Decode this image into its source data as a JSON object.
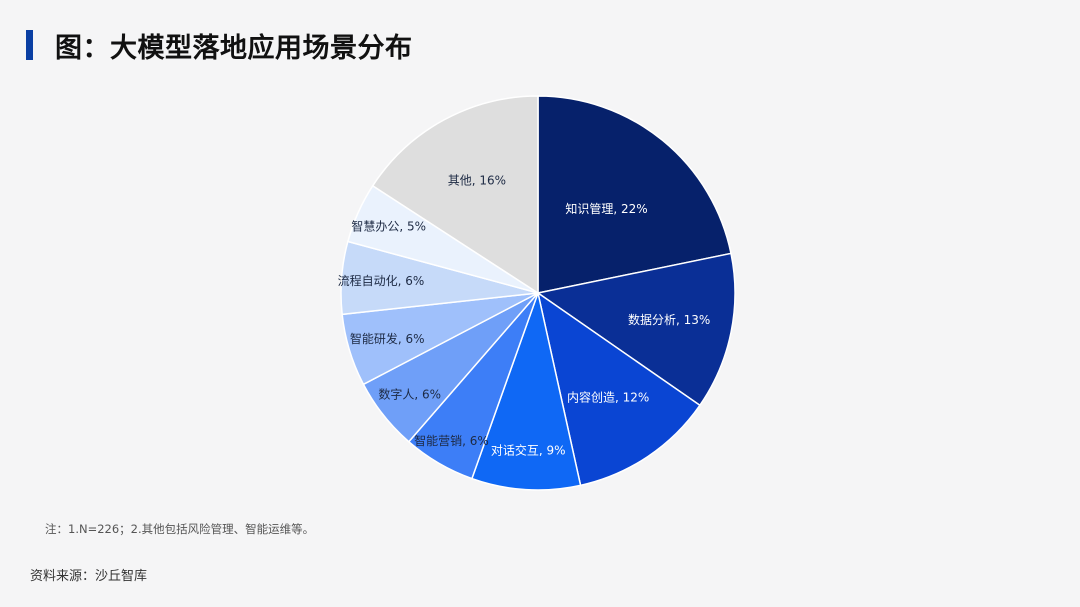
{
  "title": "图：大模型落地应用场景分布",
  "note": "注：1.N=226；2.其他包括风险管理、智能运维等。",
  "source": "资料来源：沙丘智库",
  "chart_data": {
    "type": "pie",
    "title": "图：大模型落地应用场景分布",
    "slices": [
      {
        "label": "知识管理, 22%",
        "value": 22,
        "color": "#06216b"
      },
      {
        "label": "数据分析, 13%",
        "value": 13,
        "color": "#0a2f96"
      },
      {
        "label": "内容创造, 12%",
        "value": 12,
        "color": "#0a45d3"
      },
      {
        "label": "对话交互, 9%",
        "value": 9,
        "color": "#0f68f5"
      },
      {
        "label": "智能营销, 6%",
        "value": 6,
        "color": "#3d7ef7"
      },
      {
        "label": "数字人, 6%",
        "value": 6,
        "color": "#6f9ff8"
      },
      {
        "label": "智能研发, 6%",
        "value": 6,
        "color": "#9fc0fb"
      },
      {
        "label": "流程自动化, 6%",
        "value": 6,
        "color": "#c6daf9"
      },
      {
        "label": "智慧办公, 5%",
        "value": 5,
        "color": "#eaf2fd"
      },
      {
        "label": "其他, 16%",
        "value": 16,
        "color": "#dedede"
      }
    ]
  }
}
